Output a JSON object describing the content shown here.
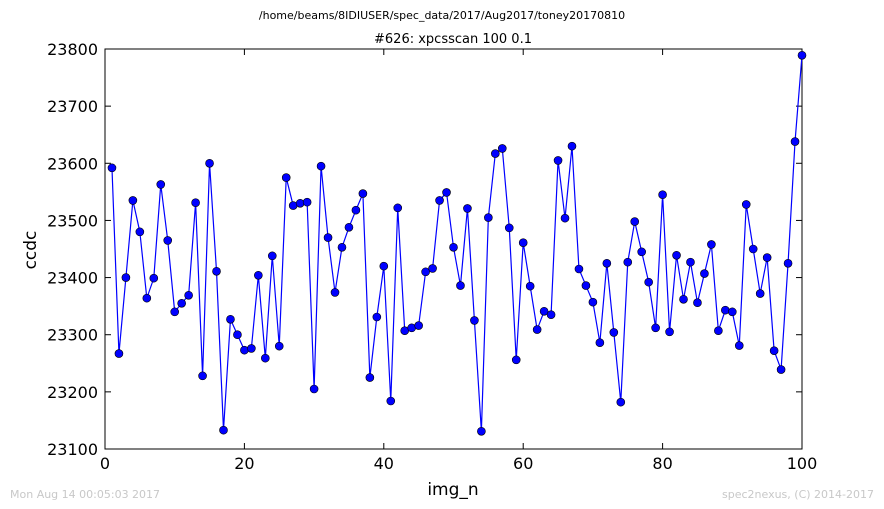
{
  "figure": {
    "suptitle": "/home/beams/8IDIUSER/spec_data/2017/Aug2017/toney20170810",
    "footer_left": "Mon Aug 14 00:05:03 2017",
    "footer_right": "spec2nexus, (C) 2014-2017"
  },
  "chart_data": {
    "type": "line",
    "title": "#626: xpcsscan 100 0.1",
    "xlabel": "img_n",
    "ylabel": "ccdc",
    "xlim": [
      0,
      100
    ],
    "ylim": [
      23100,
      23800
    ],
    "xticks": [
      0,
      20,
      40,
      60,
      80,
      100
    ],
    "yticks": [
      23100,
      23200,
      23300,
      23400,
      23500,
      23600,
      23700,
      23800
    ],
    "grid": false,
    "line_color": "#0000ff",
    "marker": "circle",
    "series": [
      {
        "x": [
          1,
          2,
          3,
          4,
          5,
          6,
          7,
          8,
          9,
          10,
          11,
          12,
          13,
          14,
          15,
          16,
          17,
          18,
          19,
          20,
          21,
          22,
          23,
          24,
          25,
          26,
          27,
          28,
          29,
          30,
          31,
          32,
          33,
          34,
          35,
          36,
          37,
          38,
          39,
          40,
          41,
          42,
          43,
          44,
          45,
          46,
          47,
          48,
          49,
          50,
          51,
          52,
          53,
          54,
          55,
          56,
          57,
          58,
          59,
          60,
          61,
          62,
          63,
          64,
          65,
          66,
          67,
          68,
          69,
          70,
          71,
          72,
          73,
          74,
          75,
          76,
          77,
          78,
          79,
          80,
          81,
          82,
          83,
          84,
          85,
          86,
          87,
          88,
          89,
          90,
          91,
          92,
          93,
          94,
          95,
          96,
          97,
          98,
          99,
          100
        ],
        "y": [
          23592,
          23267,
          23400,
          23535,
          23480,
          23364,
          23399,
          23563,
          23465,
          23340,
          23355,
          23369,
          23531,
          23228,
          23600,
          23411,
          23133,
          23327,
          23300,
          23273,
          23276,
          23404,
          23259,
          23438,
          23280,
          23575,
          23526,
          23530,
          23532,
          23205,
          23595,
          23470,
          23374,
          23453,
          23488,
          23518,
          23547,
          23225,
          23331,
          23420,
          23184,
          23522,
          23307,
          23312,
          23316,
          23410,
          23416,
          23535,
          23549,
          23453,
          23386,
          23521,
          23325,
          23131,
          23505,
          23617,
          23626,
          23487,
          23256,
          23461,
          23385,
          23309,
          23341,
          23335,
          23605,
          23504,
          23630,
          23415,
          23386,
          23357,
          23286,
          23425,
          23304,
          23182,
          23427,
          23498,
          23445,
          23392,
          23312,
          23545,
          23305,
          23439,
          23362,
          23427,
          23356,
          23407,
          23458,
          23307,
          23343,
          23340,
          23281,
          23528,
          23450,
          23372,
          23435,
          23272,
          23239,
          23425,
          23638,
          23789
        ]
      }
    ]
  }
}
